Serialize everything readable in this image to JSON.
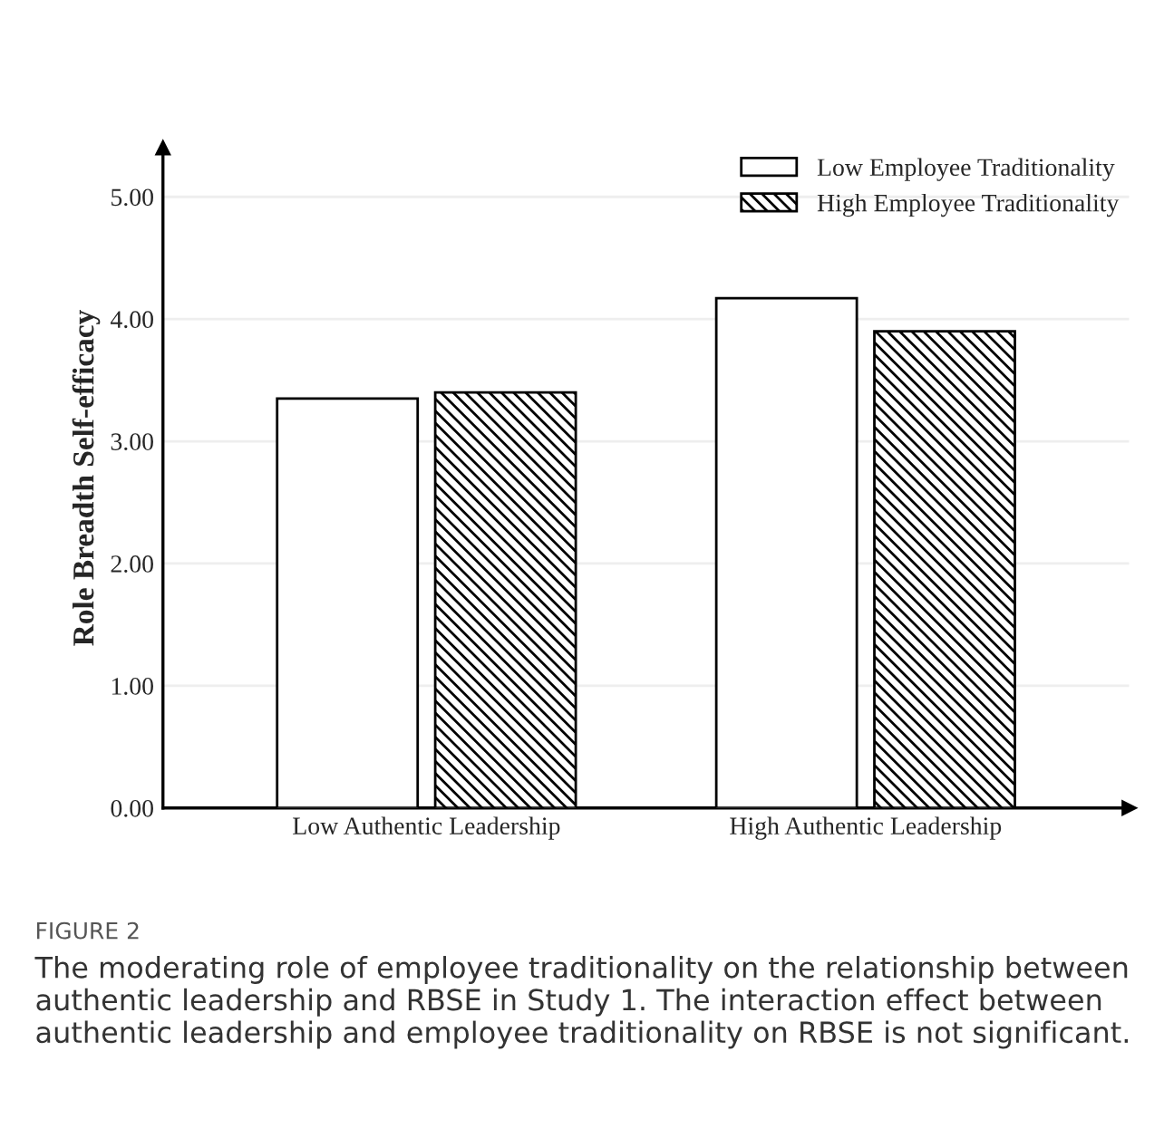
{
  "chart_data": {
    "type": "bar",
    "ylabel": "Role Breadth Self-efficacy",
    "categories": [
      "Low Authentic Leadership",
      "High Authentic Leadership"
    ],
    "series": [
      {
        "name": "Low Employee Traditionality",
        "color": "#ffffff",
        "values": [
          3.35,
          4.17
        ]
      },
      {
        "name": "High Employee Traditionality",
        "color": "#000000",
        "values": [
          3.4,
          3.9
        ]
      }
    ],
    "ylim": [
      0,
      5.4
    ],
    "yticks": [
      {
        "value": 0,
        "label": "0.00"
      },
      {
        "value": 1,
        "label": "1.00"
      },
      {
        "value": 2,
        "label": "2.00"
      },
      {
        "value": 3,
        "label": "3.00"
      },
      {
        "value": 4,
        "label": "4.00"
      },
      {
        "value": 5,
        "label": "5.00"
      }
    ],
    "grid": "y",
    "legend": "top right",
    "annotations": [
      "FIGURE 2",
      "The moderating role of employee traditionality on the relationship between authentic leadership and RBSE in Study 1. The interaction effect between authentic leadership and employee traditionality on RBSE is not significant."
    ]
  }
}
